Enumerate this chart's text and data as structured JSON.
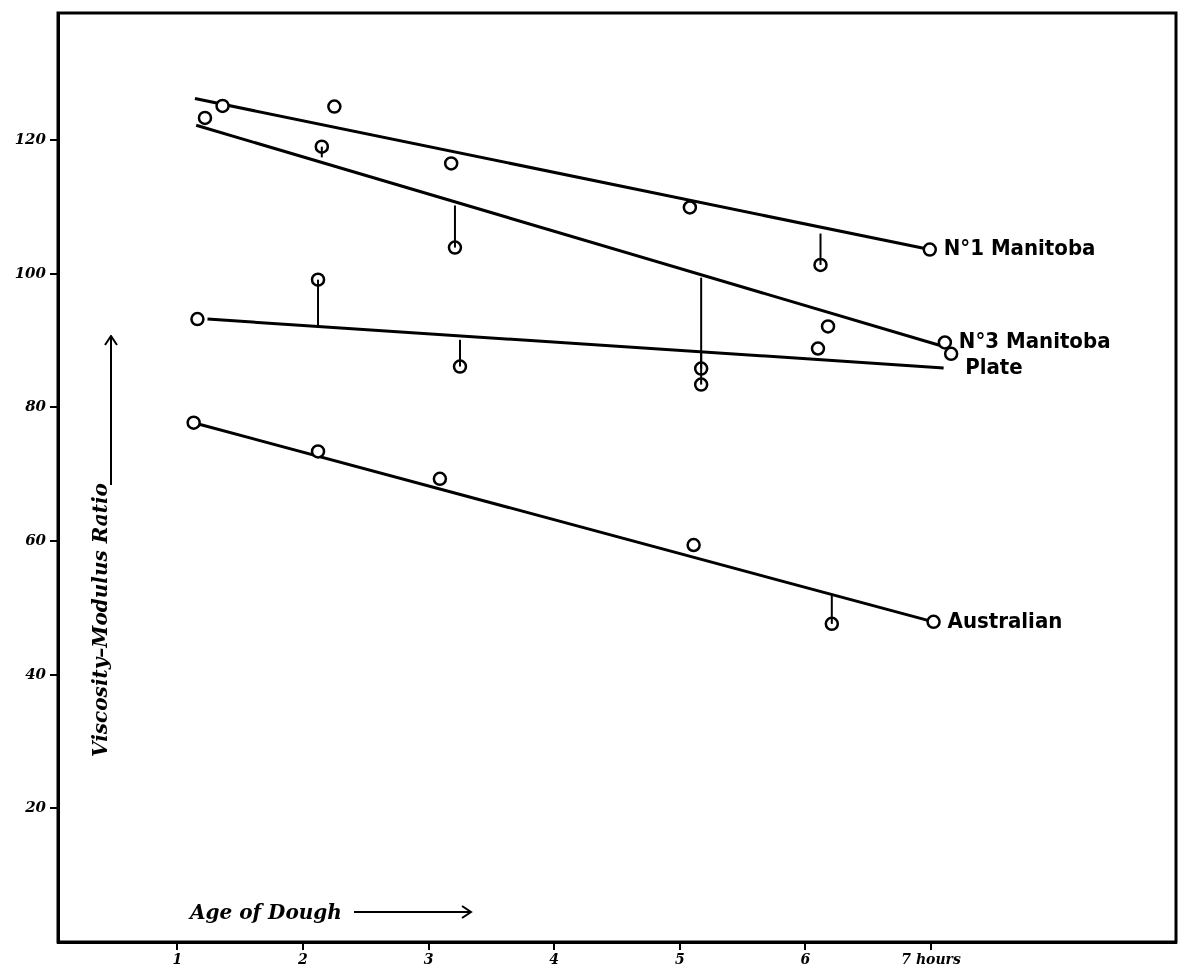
{
  "chart_data": {
    "type": "scatter",
    "xlabel": "Age of Dough",
    "ylabel": "Viscosity–Modulus Ratio",
    "xlim": [
      0.05,
      8.95
    ],
    "ylim": [
      0,
      139
    ],
    "xticks": [
      1,
      2,
      3,
      4,
      5,
      6,
      {
        "value": 7,
        "label": "7 hours"
      }
    ],
    "yticks": [
      20,
      40,
      60,
      80,
      100,
      120
    ],
    "grid": false,
    "legend": false,
    "marker": "circle",
    "series": [
      {
        "name": "N°1 Manitoba",
        "color": "#000000",
        "x": [
          1.36,
          2.25,
          3.18,
          5.08,
          6.12,
          6.99
        ],
        "values": [
          125.1,
          125,
          116.5,
          109.9,
          101.3,
          103.6
        ],
        "errors": [
          null,
          null,
          null,
          null,
          [
            101.3,
            106
          ],
          null
        ]
      },
      {
        "type": "line",
        "marker": "none",
        "color": "#000000",
        "x": [
          1.14,
          6.99
        ],
        "values": [
          126.2,
          103.6
        ]
      },
      {
        "name": "N°3 Manitoba",
        "color": "#000000",
        "x": [
          1.22,
          2.15,
          3.21,
          5.17,
          6.18,
          7.11
        ],
        "values": [
          123.3,
          119,
          103.9,
          83.4,
          92.1,
          89.7
        ],
        "errors": [
          null,
          [
            117.4,
            119
          ],
          [
            103.9,
            110.2
          ],
          [
            83.4,
            99.4
          ],
          null,
          null
        ]
      },
      {
        "type": "line",
        "marker": "none",
        "color": "#000000",
        "x": [
          1.15,
          7.1
        ],
        "values": [
          122.2,
          89.1
        ]
      },
      {
        "name": "Plate",
        "color": "#000000",
        "x": [
          1.16,
          2.12,
          3.25,
          5.17,
          6.1,
          7.16
        ],
        "values": [
          93.2,
          99.1,
          86.1,
          85.8,
          88.8,
          88
        ],
        "errors": [
          null,
          [
            92.1,
            99.1
          ],
          [
            86.1,
            90.1
          ],
          [
            85.8,
            88.3
          ],
          null,
          null
        ]
      },
      {
        "type": "line",
        "marker": "none",
        "color": "#000000",
        "x": [
          1.24,
          7.1
        ],
        "values": [
          93.2,
          85.9
        ]
      },
      {
        "name": "Australian",
        "color": "#000000",
        "x": [
          1.13,
          2.12,
          3.09,
          5.11,
          6.21,
          7.02
        ],
        "values": [
          77.7,
          73.4,
          69.3,
          59.4,
          47.6,
          47.9
        ],
        "errors": [
          null,
          null,
          null,
          null,
          [
            47.6,
            52.1
          ],
          null
        ]
      },
      {
        "type": "line",
        "marker": "none",
        "color": "#000000",
        "x": [
          1.13,
          7.02
        ],
        "values": [
          77.7,
          47.9
        ]
      }
    ]
  }
}
